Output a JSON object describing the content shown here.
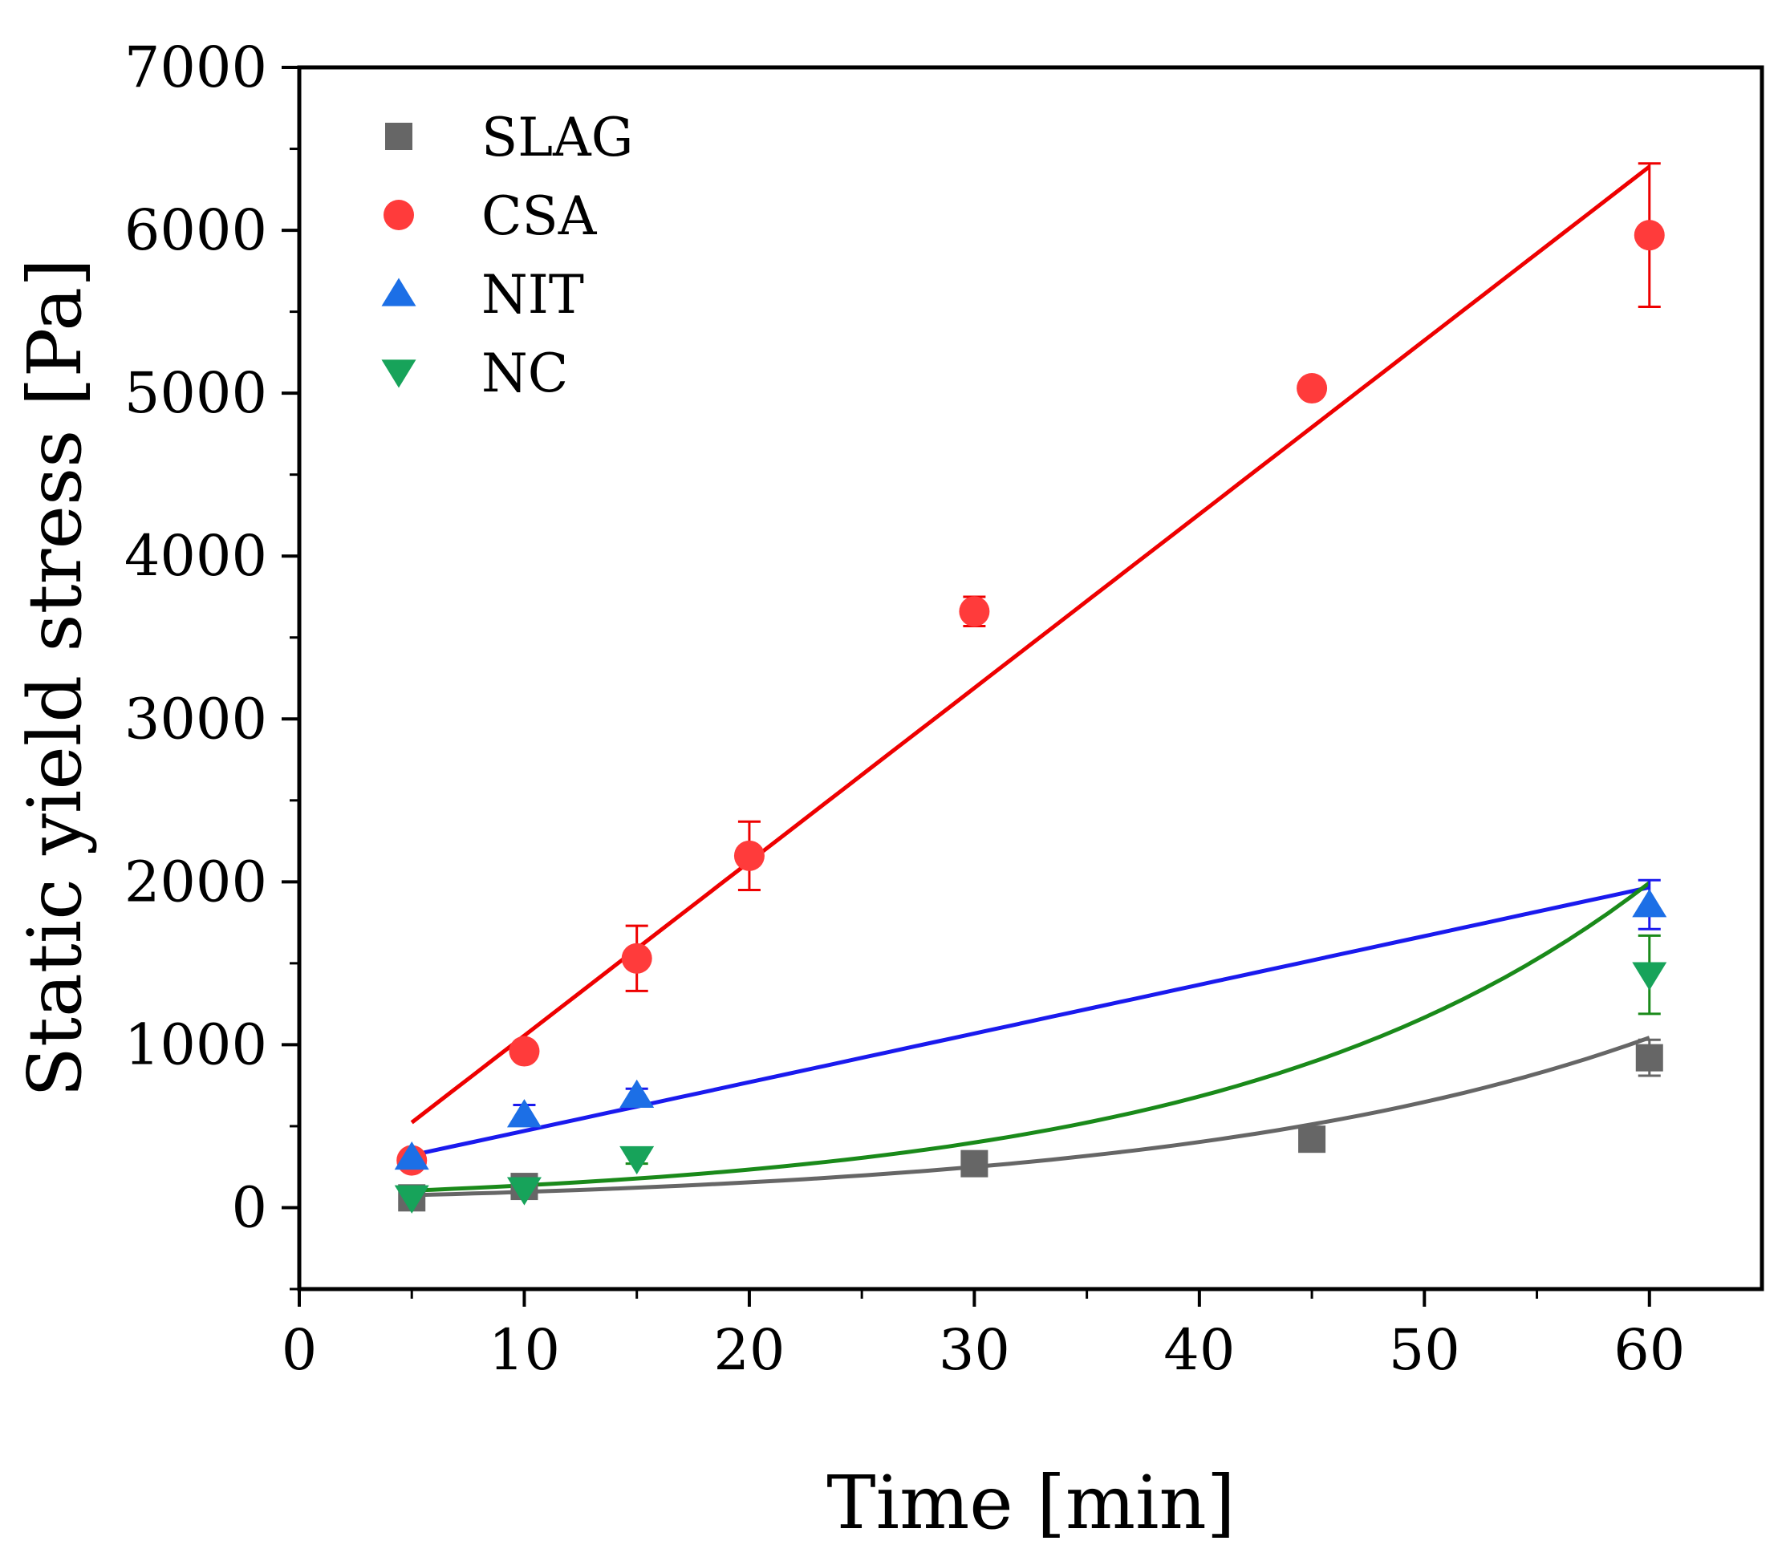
{
  "chart_data": {
    "type": "scatter",
    "title": "",
    "xlabel": "Time [min]",
    "ylabel": "Static yield stress [Pa]",
    "xlim": [
      0,
      65
    ],
    "ylim": [
      -500,
      7000
    ],
    "xticks": [
      0,
      10,
      20,
      30,
      40,
      50,
      60
    ],
    "yticks": [
      0,
      1000,
      2000,
      3000,
      4000,
      5000,
      6000,
      7000
    ],
    "xtick_labels": [
      "0",
      "10",
      "20",
      "30",
      "40",
      "50",
      "60"
    ],
    "ytick_labels": [
      "0",
      "1000",
      "2000",
      "3000",
      "4000",
      "5000",
      "6000",
      "7000"
    ],
    "legend_position": "top-left",
    "series": [
      {
        "name": "SLAG",
        "color": "#666666",
        "marker": "square",
        "x": [
          5,
          10,
          30,
          45,
          60
        ],
        "y": [
          60,
          130,
          270,
          420,
          920
        ],
        "err": [
          20,
          20,
          30,
          70,
          110
        ],
        "fit": {
          "kind": "exponential",
          "a": 60,
          "b": 0.0476,
          "x_range": [
            5,
            60
          ]
        }
      },
      {
        "name": "CSA",
        "color": "#ff3b3b",
        "marker": "circle",
        "x": [
          5,
          10,
          15,
          20,
          30,
          45,
          60
        ],
        "y": [
          290,
          960,
          1530,
          2160,
          3660,
          5030,
          5970
        ],
        "err": [
          40,
          40,
          200,
          210,
          90,
          40,
          440
        ],
        "fit": {
          "kind": "linear",
          "a": -11,
          "b": 106.7,
          "x_range": [
            5,
            60
          ],
          "color": "#ee0000"
        }
      },
      {
        "name": "NIT",
        "color": "#1c6fe6",
        "marker": "triangle-up",
        "x": [
          5,
          10,
          15,
          60
        ],
        "y": [
          310,
          570,
          690,
          1860
        ],
        "err": [
          30,
          60,
          40,
          150
        ],
        "fit": {
          "kind": "linear",
          "a": 172,
          "b": 29.9,
          "x_range": [
            5,
            60
          ],
          "color": "#1a1aee"
        }
      },
      {
        "name": "NC",
        "color": "#17a35a",
        "marker": "triangle-down",
        "x": [
          5,
          10,
          15,
          60
        ],
        "y": [
          60,
          110,
          300,
          1430
        ],
        "err": [
          20,
          30,
          30,
          240
        ],
        "fit": {
          "kind": "exponential",
          "a": 80,
          "b": 0.0536,
          "x_range": [
            5,
            60
          ],
          "color": "#1a8a1a"
        }
      }
    ]
  }
}
